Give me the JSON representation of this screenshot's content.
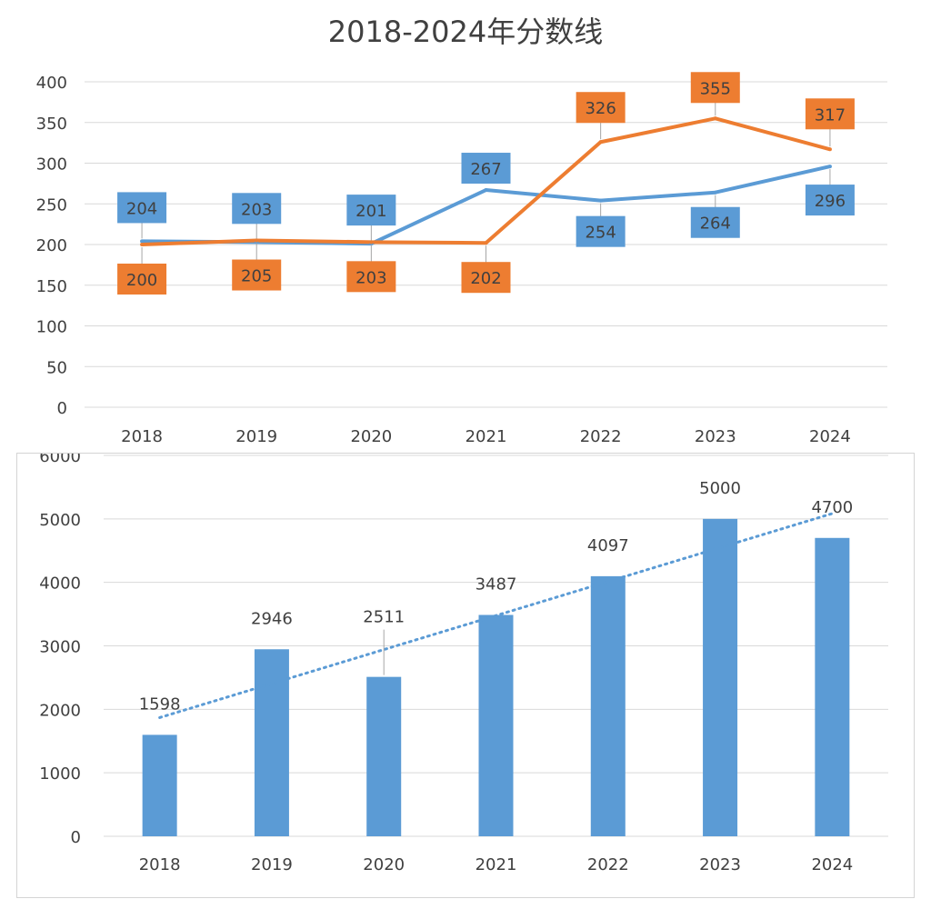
{
  "colors": {
    "blue": "#5b9bd5",
    "orange": "#ed7d31",
    "grid": "#d9d9d9",
    "text": "#404040"
  },
  "chart_data": [
    {
      "type": "line",
      "title": "2018-2024年分数线",
      "categories": [
        "2018",
        "2019",
        "2020",
        "2021",
        "2022",
        "2023",
        "2024"
      ],
      "ylim": [
        0,
        400
      ],
      "yticks": [
        "0",
        "50",
        "100",
        "150",
        "200",
        "250",
        "300",
        "350",
        "400"
      ],
      "grid": true,
      "series": [
        {
          "color": "#5b9bd5",
          "values": [
            204,
            203,
            201,
            267,
            254,
            264,
            296
          ]
        },
        {
          "color": "#ed7d31",
          "values": [
            200,
            205,
            203,
            202,
            326,
            355,
            317
          ]
        }
      ]
    },
    {
      "type": "bar",
      "categories": [
        "2018",
        "2019",
        "2020",
        "2021",
        "2022",
        "2023",
        "2024"
      ],
      "ylim": [
        0,
        6000
      ],
      "yticks": [
        "0",
        "1000",
        "2000",
        "3000",
        "4000",
        "5000",
        "6000"
      ],
      "grid": true,
      "values": [
        1598,
        2946,
        2511,
        3487,
        4097,
        5000,
        4700
      ],
      "trendline": "linear",
      "color": "#5b9bd5"
    }
  ]
}
